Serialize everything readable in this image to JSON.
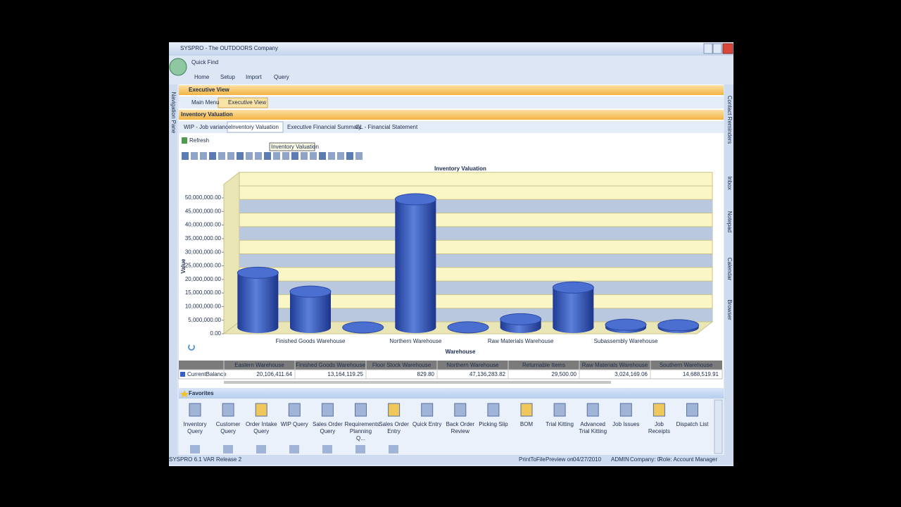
{
  "window": {
    "title": "SYSPRO - The OUTDOORS Company",
    "quick_find": "Quick Find",
    "menu": [
      "Home",
      "Setup",
      "Import",
      "Query"
    ]
  },
  "side_panes": {
    "left": "Navigation Pane",
    "right": [
      "Contact Reminders",
      "Inbox",
      "Notepad",
      "Calendar",
      "Browser"
    ]
  },
  "executive_panel": {
    "title": "Executive View",
    "tabs": [
      "Main Menu",
      "Executive View"
    ]
  },
  "inventory_panel": {
    "title": "Inventory Valuation",
    "tabs": [
      "WIP - Job variance",
      "Inventory Valuation",
      "Executive Financial Summary",
      "GL - Financial Statement"
    ],
    "refresh": "Refresh",
    "tooltip": "Inventory Valuation"
  },
  "chart_data": {
    "type": "bar",
    "title": "Inventory Valuation",
    "x_label": "Warehouse",
    "y_label": "Value",
    "categories": [
      null,
      "Finished Goods Warehouse",
      null,
      "Northern Warehouse",
      null,
      "Raw Materials Warehouse",
      null,
      "Subassembly Warehouse",
      null
    ],
    "series": [
      {
        "name": "CurrentBalance",
        "color": "#3a5fc8",
        "values": [
          20106411.64,
          13164119.25,
          829.8,
          47136283.82,
          29500,
          3024169.06,
          14688519.91,
          1000000,
          800000
        ],
        "value_labels": [
          "20,106,411.64",
          "13,164,119.25",
          "829.80",
          "47,136,283.82",
          "29,500.00",
          "3,024,169.06",
          "14,688,519.91",
          null,
          null
        ]
      }
    ],
    "ylim": [
      0,
      55000000
    ],
    "yticks": [
      {
        "value": 0,
        "label": "0.00"
      },
      {
        "value": 5000000,
        "label": "5,000,000.00"
      },
      {
        "value": 10000000,
        "label": "10,000,000.00"
      },
      {
        "value": 15000000,
        "label": "15,000,000.00"
      },
      {
        "value": 20000000,
        "label": "20,000,000.00"
      },
      {
        "value": 25000000,
        "label": "25,000,000.00"
      },
      {
        "value": 30000000,
        "label": "30,000,000.00"
      },
      {
        "value": 35000000,
        "label": "35,000,000.00"
      },
      {
        "value": 40000000,
        "label": "40,000,000.00"
      },
      {
        "value": 45000000,
        "label": "45,000,000.00"
      },
      {
        "value": 50000000,
        "label": "50,000,000.00"
      }
    ],
    "grid": true,
    "data_table": {
      "columns": [
        "Eastern Warehouse",
        "Finished Goods Warehouse",
        "Floor Stock Warehouse",
        "Northern Warehouse",
        "Returnable Items",
        "Raw Materials Warehouse",
        "Southern Warehouse"
      ]
    }
  },
  "favorites": {
    "title": "Favorites",
    "items": [
      "Inventory Query",
      "Customer Query",
      "Order Intake Query",
      "WIP Query",
      "Sales Order Query",
      "Requirements Planning Q...",
      "Sales Order Entry",
      "Quick Entry",
      "Back Order Review",
      "Picking Slip",
      "BOM",
      "Trial Kitting",
      "Advanced Trial Kitting",
      "Job Issues",
      "Job Receipts",
      "Dispatch List"
    ]
  },
  "status_bar": {
    "release": "SYSPRO 6.1 VAR Release 2",
    "items": [
      "PrintToFile",
      "Preview on",
      "04/27/2010",
      "ADMIN",
      "Company: 0",
      "Role: Account Manager"
    ]
  }
}
